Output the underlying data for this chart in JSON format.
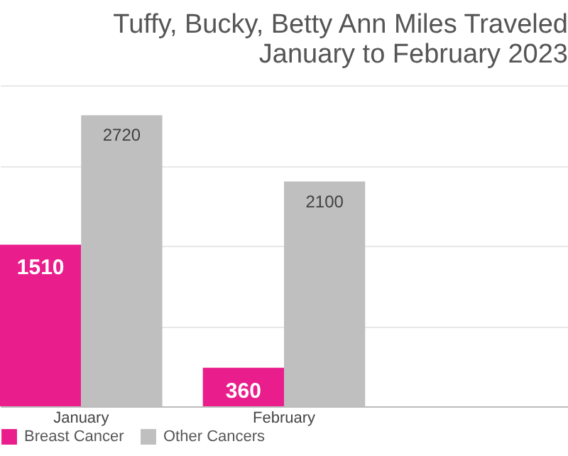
{
  "chart_data": {
    "type": "bar",
    "title": "Tuffy, Bucky, Betty Ann Miles Traveled\nJanuary to February 2023",
    "categories": [
      "January",
      "February",
      null
    ],
    "series": [
      {
        "name": "Breast Cancer",
        "color": "#e91e8c",
        "values": [
          1510,
          360,
          null
        ]
      },
      {
        "name": "Other Cancers",
        "color": "#bfbfbf",
        "values": [
          2720,
          2100,
          null
        ]
      }
    ],
    "ylim": [
      0,
      3000
    ],
    "yticks": [
      {
        "value": 0,
        "label": null
      },
      {
        "value": 750,
        "label": null
      },
      {
        "value": 1500,
        "label": null
      },
      {
        "value": 2250,
        "label": null
      },
      {
        "value": 3000,
        "label": null
      }
    ],
    "grid": "y",
    "tick_labels": "x",
    "data_labels": true,
    "legend": "bottom"
  }
}
